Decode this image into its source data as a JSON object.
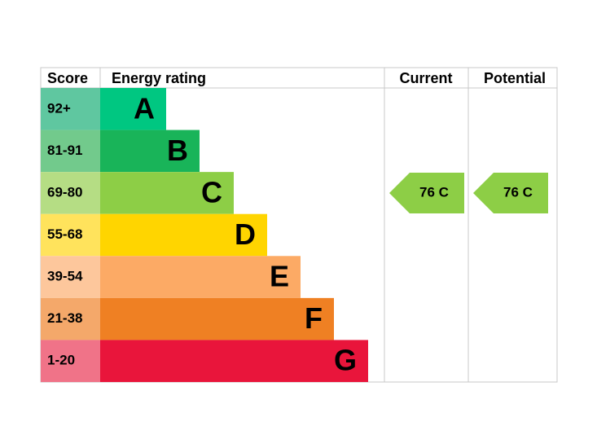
{
  "header": {
    "score": "Score",
    "rating": "Energy rating",
    "current": "Current",
    "potential": "Potential"
  },
  "rows": [
    {
      "score": "92+",
      "band": "A"
    },
    {
      "score": "81-91",
      "band": "B"
    },
    {
      "score": "69-80",
      "band": "C"
    },
    {
      "score": "55-68",
      "band": "D"
    },
    {
      "score": "39-54",
      "band": "E"
    },
    {
      "score": "21-38",
      "band": "F"
    },
    {
      "score": "1-20",
      "band": "G"
    }
  ],
  "current": "76 C",
  "potential": "76 C"
}
